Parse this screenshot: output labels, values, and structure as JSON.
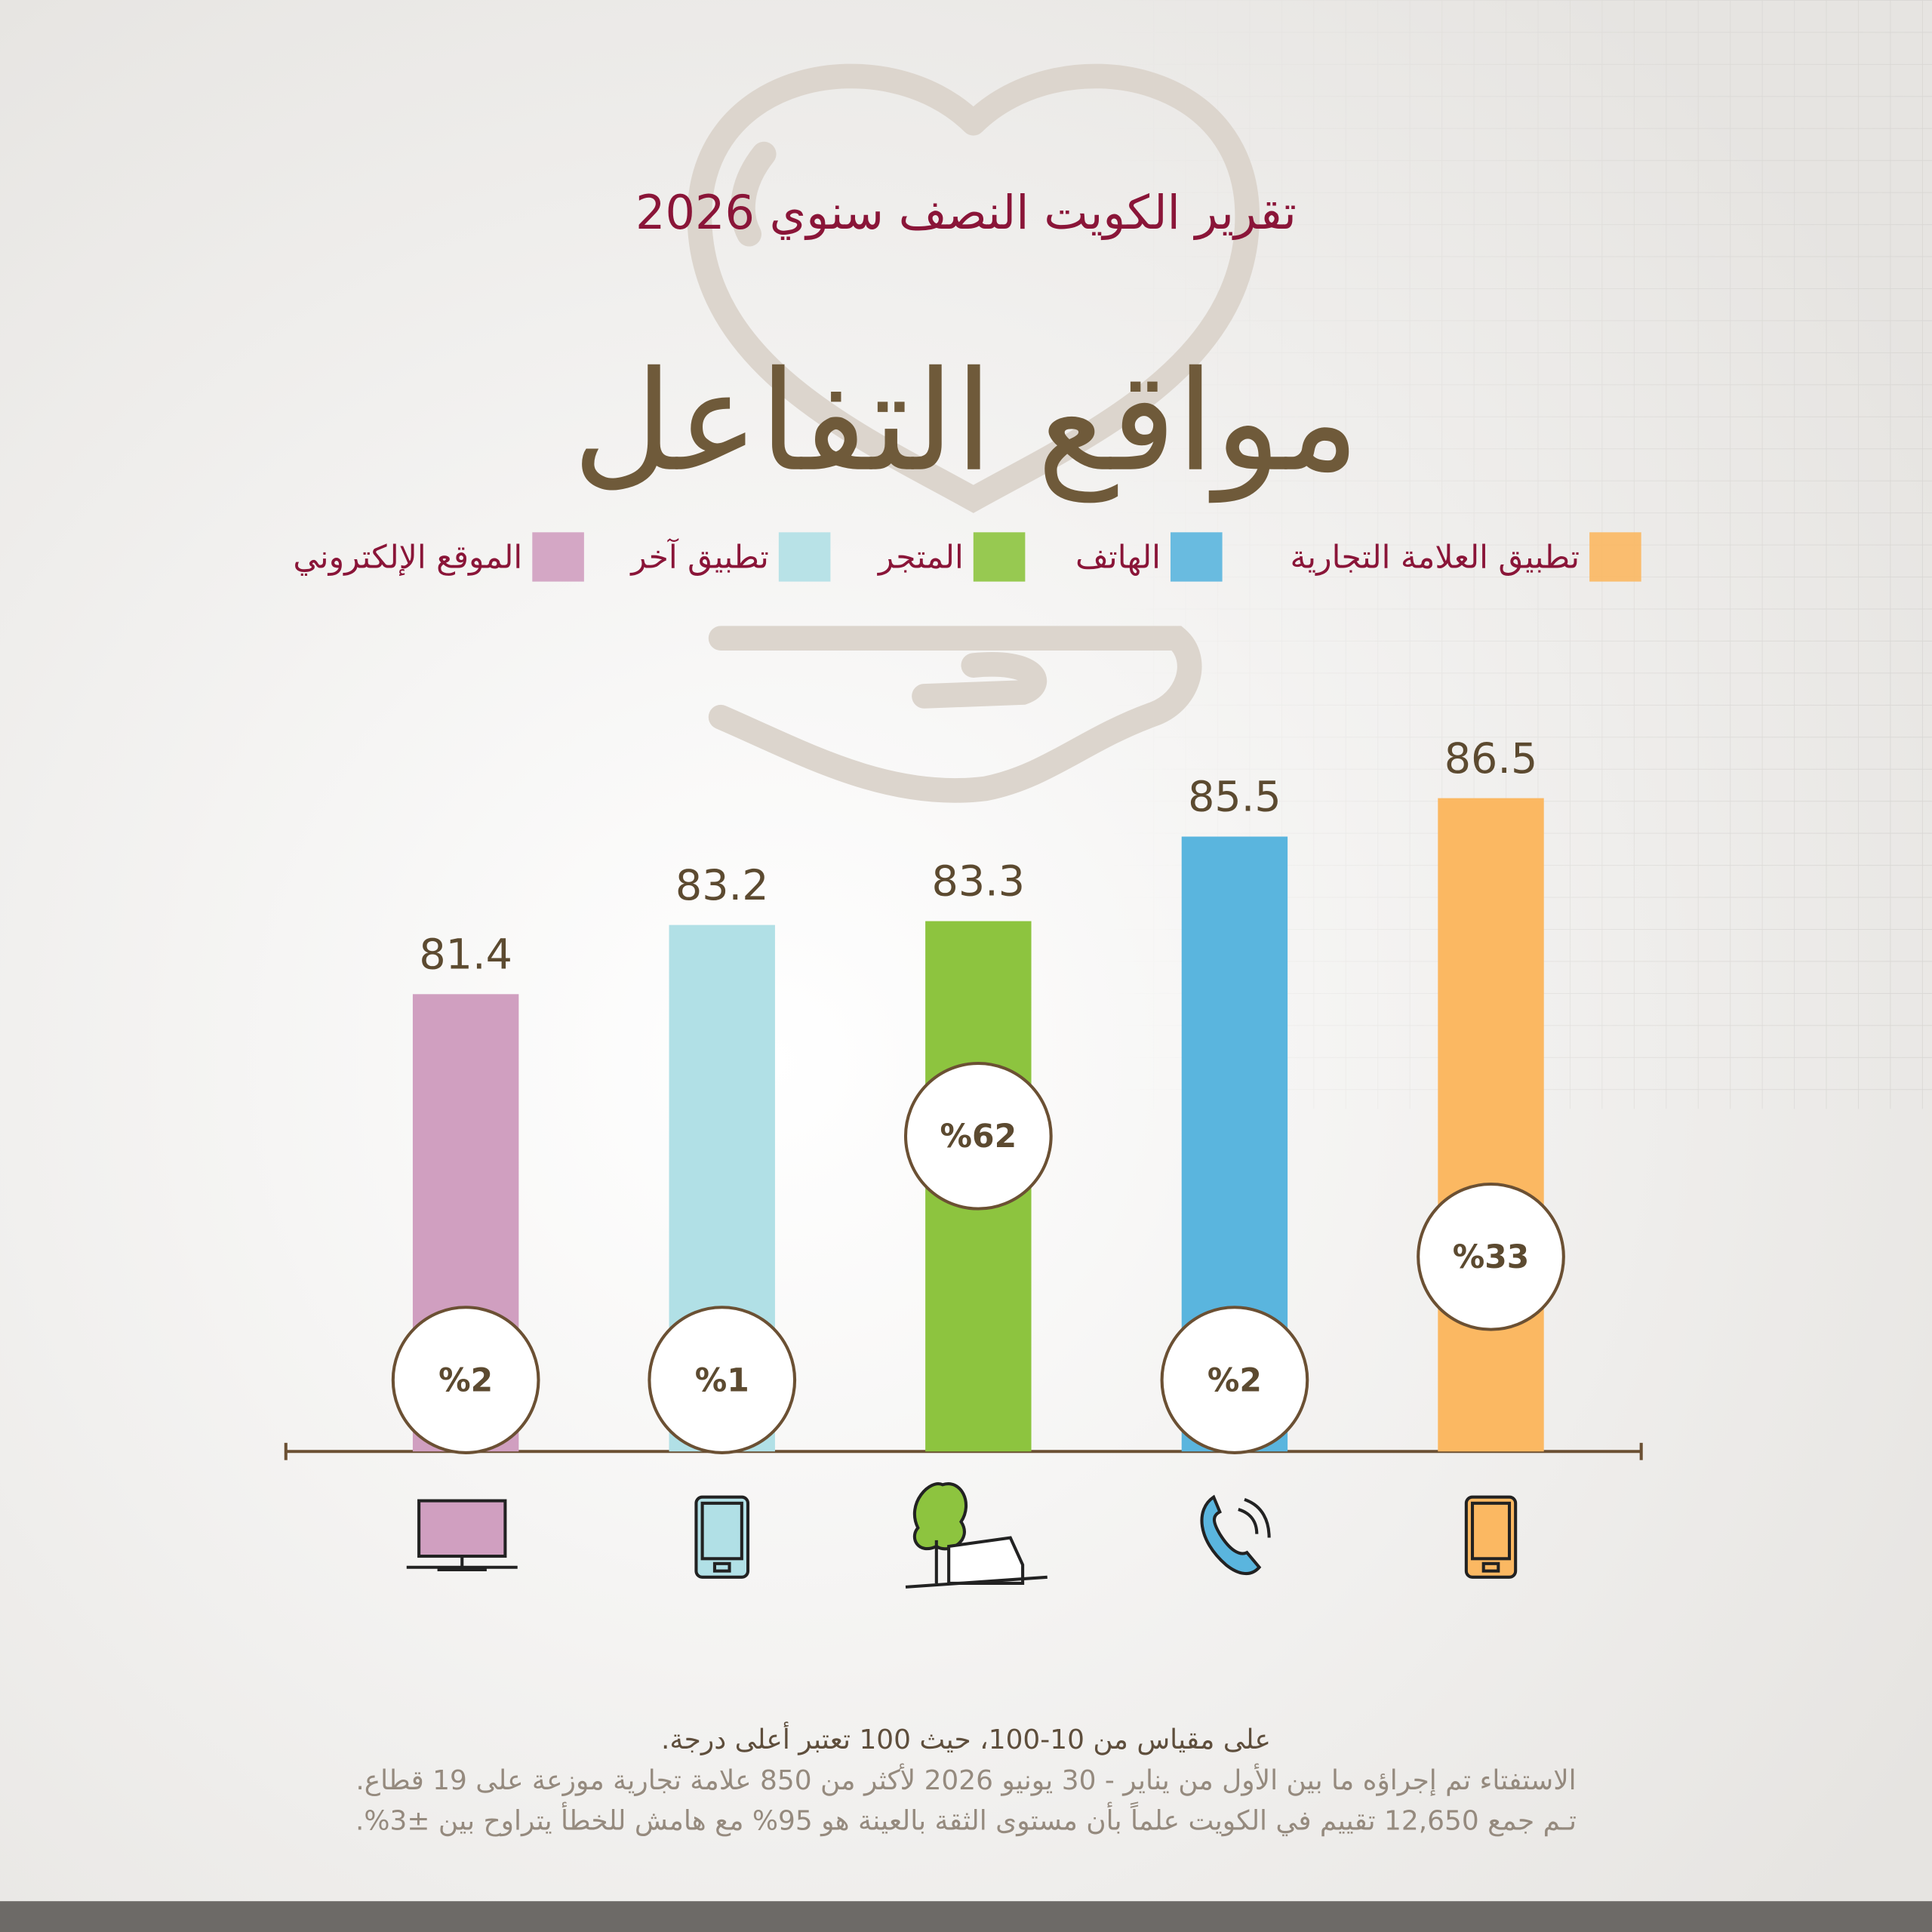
{
  "chart_data": {
    "type": "bar",
    "subtitle": "تقرير الكويت النصف سنوي 2026",
    "title": "مواقع التفاعل",
    "categories": [
      "تطبيق العلامة التجارية",
      "الهاتف",
      "المتجر",
      "تطبيق آخر",
      "الموقع الإلكتروني"
    ],
    "colors": [
      "#fbb862",
      "#5ab5de",
      "#8dc43f",
      "#b1e0e6",
      "#d09fc0"
    ],
    "values": [
      86.5,
      85.5,
      83.3,
      83.2,
      81.4
    ],
    "share_values": [
      33,
      2,
      62,
      1,
      2
    ],
    "share_labels": [
      "%33",
      "%2",
      "%62",
      "%1",
      "%2"
    ],
    "ylim": [
      69.5,
      88
    ],
    "notes": [
      "على مقياس من 10-100، حيث 100 تعتبر أعلى درجة.",
      "الاستفتاء تم إجراؤه ما بين الأول من يناير - 30 يونيو 2026 لأكثر من 850 علامة تجارية موزعة على 19 قطاع.",
      "تـم جمع 12,650 تقييم في الكويت علماً بأن مستوى الثقة بالعينة هو 95% مع هامش للخطأ يتراوح بين ±3%."
    ]
  }
}
